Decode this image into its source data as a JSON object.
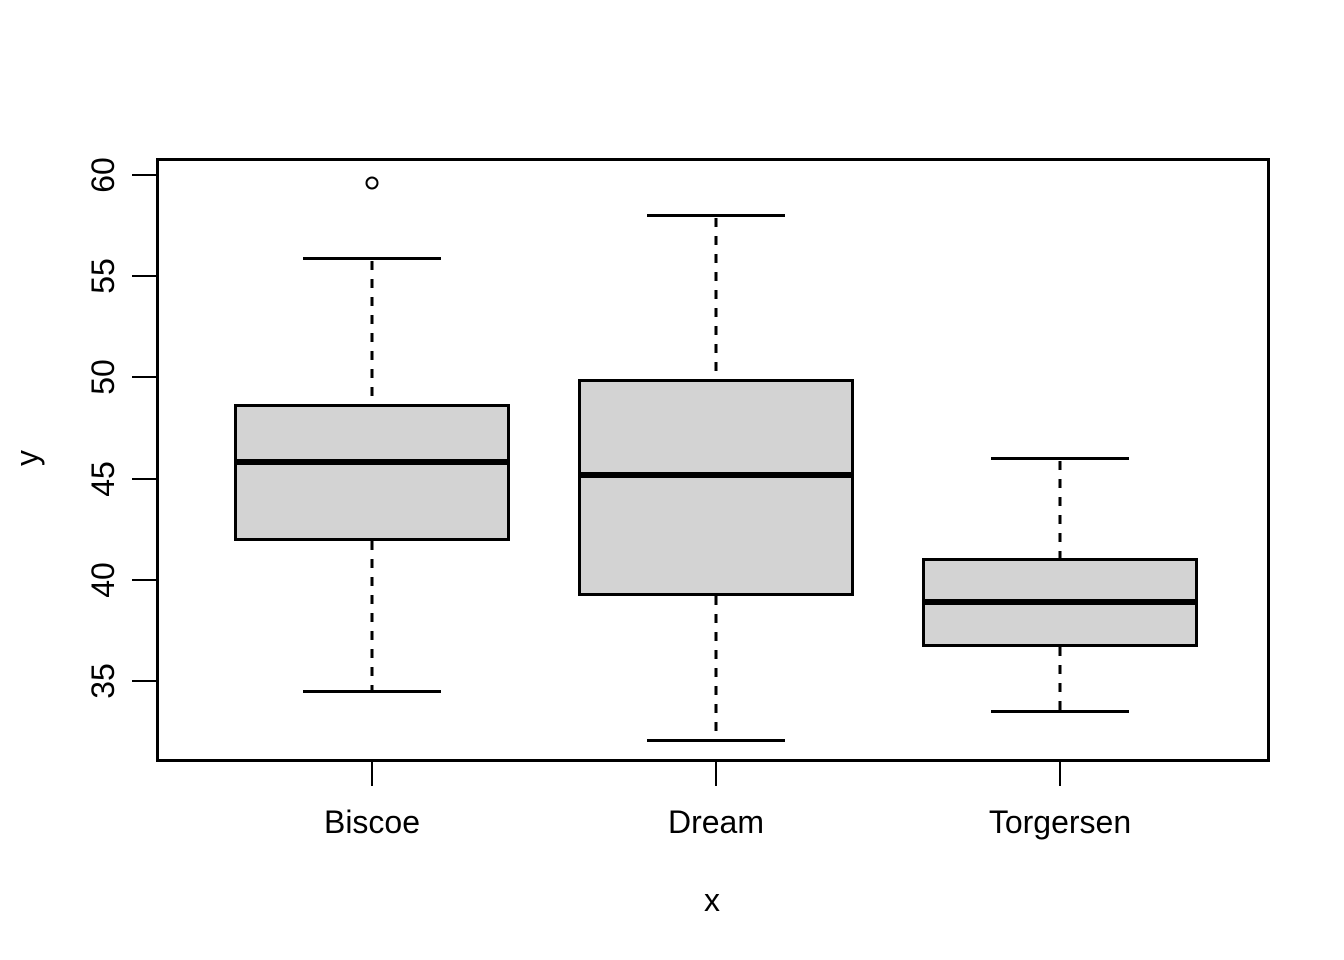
{
  "figure": {
    "background": "#ffffff",
    "box_fill": "#d3d3d3",
    "line_color": "#000000"
  },
  "chart_data": {
    "type": "boxplot",
    "title": "",
    "xlabel": "x",
    "ylabel": "y",
    "categories": [
      "Biscoe",
      "Dream",
      "Torgersen"
    ],
    "yticks": [
      35,
      40,
      45,
      50,
      55,
      60
    ],
    "ylim": [
      30.8,
      61.0
    ],
    "grid": false,
    "legend": "none",
    "box_fill": "#d3d3d3",
    "series": [
      {
        "label": "Biscoe",
        "whisker_low": 34.5,
        "q1": 41.9,
        "median": 45.8,
        "q3": 48.7,
        "whisker_high": 55.9,
        "outliers": [
          59.6
        ]
      },
      {
        "label": "Dream",
        "whisker_low": 32.1,
        "q1": 39.2,
        "median": 45.2,
        "q3": 49.9,
        "whisker_high": 58.0,
        "outliers": []
      },
      {
        "label": "Torgersen",
        "whisker_low": 33.5,
        "q1": 36.7,
        "median": 38.9,
        "q3": 41.1,
        "whisker_high": 46.0,
        "outliers": []
      }
    ]
  }
}
